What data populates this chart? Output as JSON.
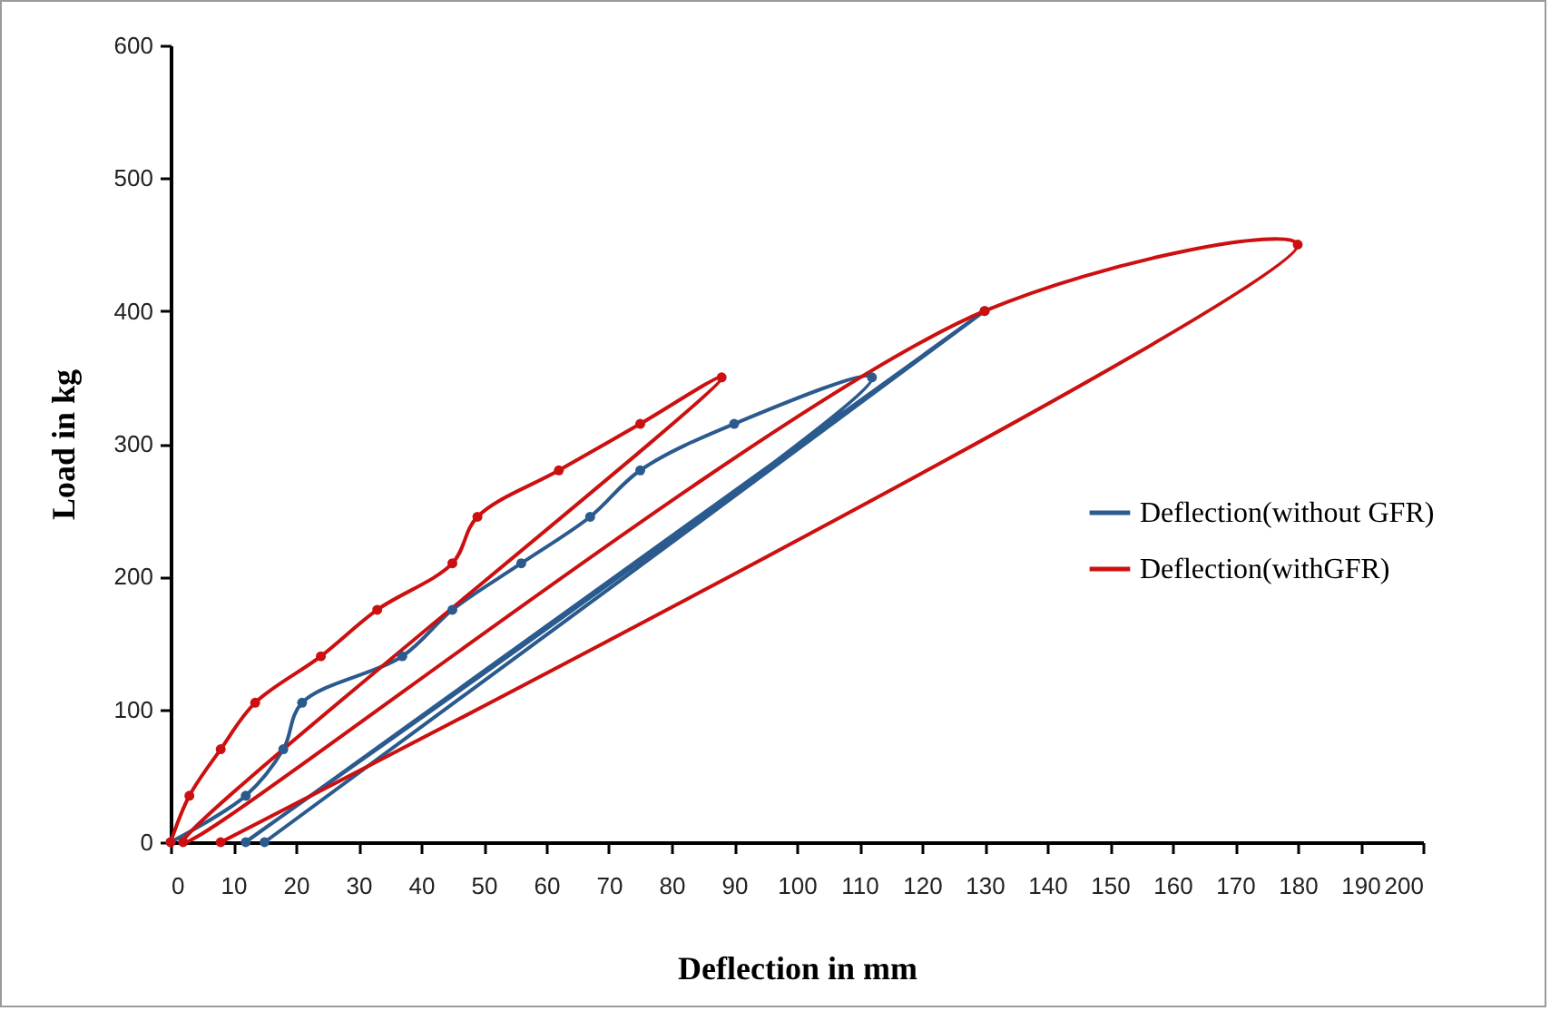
{
  "chart_data": {
    "type": "line",
    "xlabel": "Deflection in mm",
    "ylabel": "Load in kg",
    "xlim": [
      0,
      200
    ],
    "ylim": [
      0,
      600
    ],
    "xticks": [
      0,
      10,
      20,
      30,
      40,
      50,
      60,
      70,
      80,
      90,
      100,
      110,
      120,
      130,
      140,
      150,
      160,
      170,
      180,
      190,
      200
    ],
    "yticks": [
      0,
      100,
      200,
      300,
      400,
      500,
      600
    ],
    "grid": false,
    "legend": "right",
    "marker": "circle",
    "line_style": "solid",
    "series": [
      {
        "name": "Deflection(without GFR)",
        "color": "#2a5a8e",
        "x": [
          0,
          12,
          18,
          21,
          37,
          45,
          56,
          67,
          75,
          90,
          112,
          12,
          130,
          15
        ],
        "values": [
          0,
          35,
          70,
          105,
          140,
          175,
          210,
          245,
          280,
          315,
          350,
          0,
          400,
          0
        ]
      },
      {
        "name": "Deflection(withGFR)",
        "color": "#cc1010",
        "x": [
          0,
          3,
          8,
          13.5,
          24,
          33,
          45,
          49,
          62,
          75,
          88,
          2,
          130,
          180,
          8
        ],
        "values": [
          0,
          35,
          70,
          105,
          140,
          175,
          210,
          245,
          280,
          315,
          350,
          0,
          400,
          450,
          0
        ]
      }
    ]
  }
}
